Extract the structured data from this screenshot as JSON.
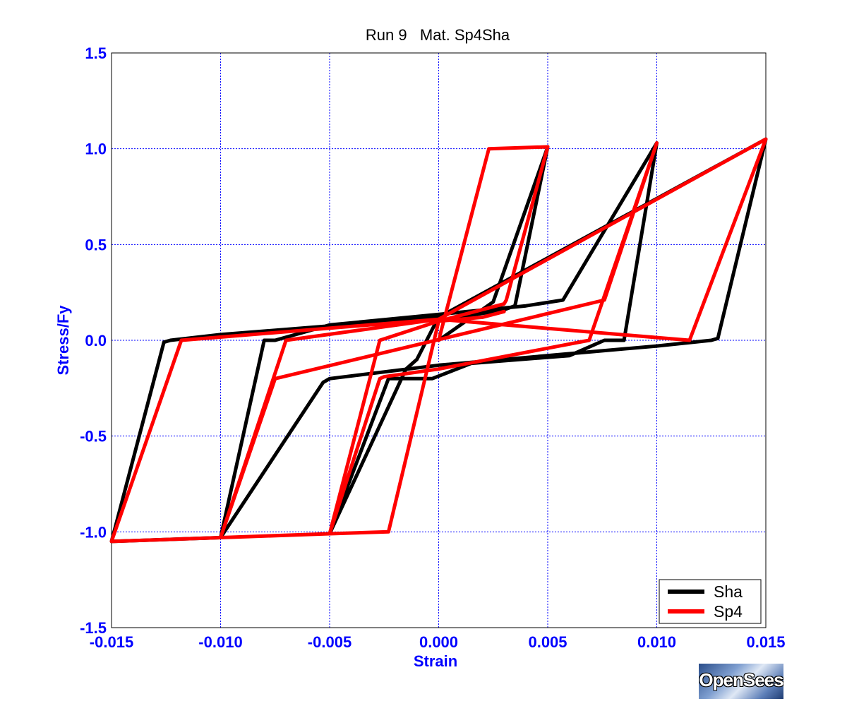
{
  "chart_data": {
    "type": "line",
    "title": "Run 9   Mat. Sp4Sha",
    "xlabel": "Strain",
    "ylabel": "Stress/Fy",
    "xlim": [
      -0.015,
      0.015
    ],
    "ylim": [
      -1.5,
      1.5
    ],
    "xticks": [
      -0.015,
      -0.01,
      -0.005,
      0.0,
      0.005,
      0.01,
      0.015
    ],
    "xtick_labels": [
      "-0.015",
      "-0.010",
      "-0.005",
      "0.000",
      "0.005",
      "0.010",
      "0.015"
    ],
    "yticks": [
      -1.5,
      -1.0,
      -0.5,
      0.0,
      0.5,
      1.0,
      1.5
    ],
    "ytick_labels": [
      "-1.5",
      "-1.0",
      "-0.5",
      "0.0",
      "0.5",
      "1.0",
      "1.5"
    ],
    "grid": true,
    "legend_position": "bottom-right",
    "series": [
      {
        "name": "Sha",
        "color": "#000000",
        "points": [
          [
            0.0,
            0.0
          ],
          [
            0.0025,
            0.2
          ],
          [
            0.005,
            1.01
          ],
          [
            0.0035,
            0.18
          ],
          [
            0.003,
            0.16
          ],
          [
            -0.0001,
            0.1
          ],
          [
            -0.001,
            -0.1
          ],
          [
            -0.0015,
            -0.15
          ],
          [
            -0.005,
            -1.01
          ],
          [
            -0.0023,
            -0.2
          ],
          [
            -0.002,
            -0.2
          ],
          [
            -0.0003,
            -0.2
          ],
          [
            0.0015,
            -0.12
          ],
          [
            0.006,
            -0.08
          ],
          [
            0.0076,
            0.0
          ],
          [
            0.0085,
            0.0
          ],
          [
            0.01,
            1.03
          ],
          [
            0.0057,
            0.21
          ],
          [
            0.004,
            0.18
          ],
          [
            -0.005,
            0.08
          ],
          [
            -0.0075,
            0.0
          ],
          [
            -0.008,
            0.0
          ],
          [
            -0.01,
            -1.03
          ],
          [
            -0.0053,
            -0.22
          ],
          [
            -0.005,
            -0.2
          ],
          [
            0.0,
            -0.13
          ],
          [
            0.01,
            -0.03
          ],
          [
            0.0125,
            0.0
          ],
          [
            0.0128,
            0.01
          ],
          [
            0.015,
            1.05
          ],
          [
            0.0,
            0.12
          ],
          [
            -0.01,
            0.03
          ],
          [
            -0.0123,
            0.0
          ],
          [
            -0.0126,
            -0.01
          ],
          [
            -0.015,
            -1.05
          ],
          [
            -0.01,
            -1.03
          ]
        ]
      },
      {
        "name": "Sp4",
        "color": "#ff0000",
        "points": [
          [
            0.0,
            0.0
          ],
          [
            0.0023,
            1.0
          ],
          [
            0.005,
            1.01
          ],
          [
            0.0031,
            0.21
          ],
          [
            0.003,
            0.19
          ],
          [
            0.0,
            0.1
          ],
          [
            -0.0023,
            -1.0
          ],
          [
            -0.005,
            -1.01
          ],
          [
            -0.0027,
            -0.2
          ],
          [
            -0.0025,
            -0.19
          ],
          [
            0.0,
            -0.15
          ],
          [
            0.0069,
            0.0
          ],
          [
            0.01,
            1.03
          ],
          [
            0.0076,
            0.21
          ],
          [
            -0.0075,
            -0.2
          ],
          [
            -0.01,
            -1.03
          ],
          [
            -0.007,
            0.0
          ],
          [
            0.0,
            0.11
          ],
          [
            0.0115,
            0.0
          ],
          [
            0.015,
            1.05
          ],
          [
            0.0,
            0.11
          ],
          [
            -0.0118,
            0.0
          ],
          [
            -0.015,
            -1.05
          ],
          [
            -0.01,
            -1.03
          ],
          [
            -0.005,
            -1.01
          ],
          [
            -0.0027,
            0.0
          ],
          [
            0.0,
            0.1
          ],
          [
            0.002,
            0.12
          ],
          [
            0.003,
            0.15
          ]
        ]
      }
    ]
  },
  "logo_text": "OpenSees"
}
